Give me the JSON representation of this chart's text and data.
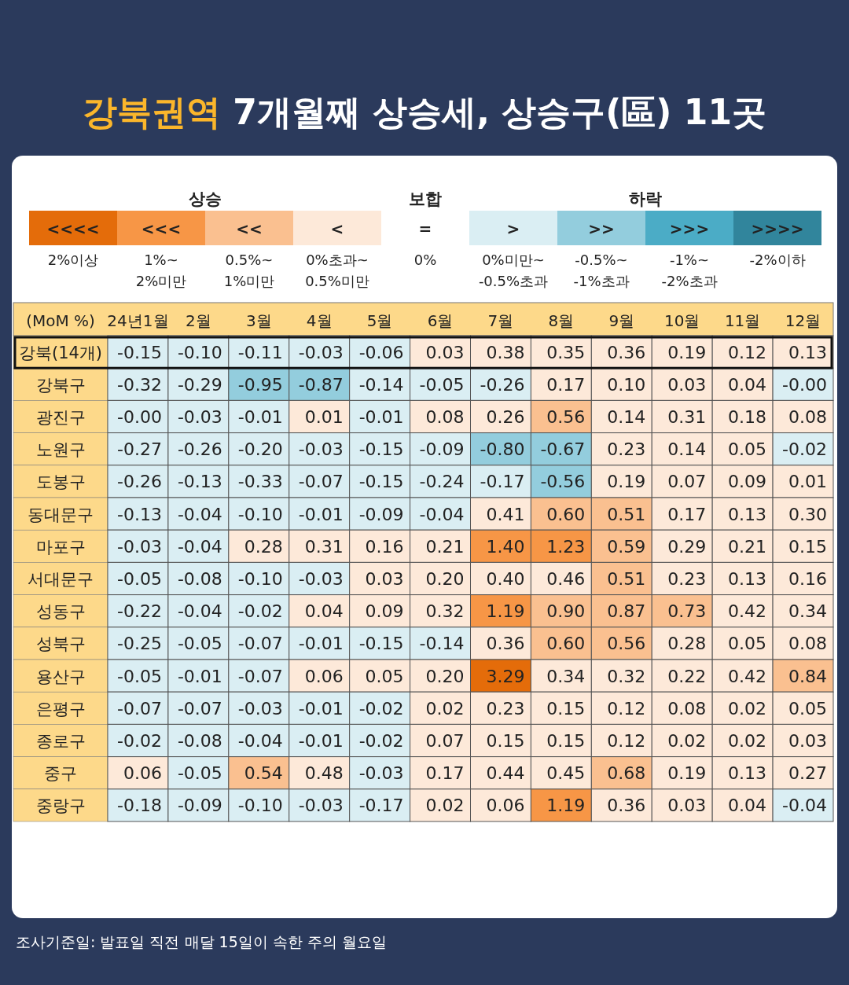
{
  "chart_data": [
    {
      "type": "other",
      "categories": [
        "<<<<",
        "<<<",
        "<<",
        "<",
        "=",
        ">",
        ">>",
        ">>>",
        ">>>>"
      ],
      "colors": [
        "#e46c0a",
        "#f79646",
        "#fac090",
        "#fde9d9",
        "#ffffff",
        "#daeef3",
        "#93cddd",
        "#4bacc6",
        "#31859c"
      ],
      "annotations": [
        "상승",
        "보합",
        "하락",
        "2%이상",
        "1%~ 2%미만",
        "0.5%~ 1%미만",
        "0%초과~ 0.5%미만",
        "0%",
        "0%미만~ -0.5%초과",
        "-0.5%~ -1%초과",
        "-1%~ -2%초과",
        "-2%이하"
      ]
    },
    {
      "type": "heatmap",
      "title": "강북권역 7개월째 상승세, 상승구(區) 11곳",
      "xlabel": "(MoM %)",
      "categories": [
        "24년1월",
        "2월",
        "3월",
        "4월",
        "5월",
        "6월",
        "7월",
        "8월",
        "9월",
        "10월",
        "11월",
        "12월"
      ],
      "y_categories": [
        "강북(14개)",
        "강북구",
        "광진구",
        "노원구",
        "도봉구",
        "동대문구",
        "마포구",
        "서대문구",
        "성동구",
        "성북구",
        "용산구",
        "은평구",
        "종로구",
        "중구",
        "중랑구"
      ],
      "cell_labels": [
        [
          "-0.15",
          "-0.10",
          "-0.11",
          "-0.03",
          "-0.06",
          "0.03",
          "0.38",
          "0.35",
          "0.36",
          "0.19",
          "0.12",
          "0.13"
        ],
        [
          "-0.32",
          "-0.29",
          "-0.95",
          "-0.87",
          "-0.14",
          "-0.05",
          "-0.26",
          "0.17",
          "0.10",
          "0.03",
          "0.04",
          "-0.00"
        ],
        [
          "-0.00",
          "-0.03",
          "-0.01",
          "0.01",
          "-0.01",
          "0.08",
          "0.26",
          "0.56",
          "0.14",
          "0.31",
          "0.18",
          "0.08"
        ],
        [
          "-0.27",
          "-0.26",
          "-0.20",
          "-0.03",
          "-0.15",
          "-0.09",
          "-0.80",
          "-0.67",
          "0.23",
          "0.14",
          "0.05",
          "-0.02"
        ],
        [
          "-0.26",
          "-0.13",
          "-0.33",
          "-0.07",
          "-0.15",
          "-0.24",
          "-0.17",
          "-0.56",
          "0.19",
          "0.07",
          "0.09",
          "0.01"
        ],
        [
          "-0.13",
          "-0.04",
          "-0.10",
          "-0.01",
          "-0.09",
          "-0.04",
          "0.41",
          "0.60",
          "0.51",
          "0.17",
          "0.13",
          "0.30"
        ],
        [
          "-0.03",
          "-0.04",
          "0.28",
          "0.31",
          "0.16",
          "0.21",
          "1.40",
          "1.23",
          "0.59",
          "0.29",
          "0.21",
          "0.15"
        ],
        [
          "-0.05",
          "-0.08",
          "-0.10",
          "-0.03",
          "0.03",
          "0.20",
          "0.40",
          "0.46",
          "0.51",
          "0.23",
          "0.13",
          "0.16"
        ],
        [
          "-0.22",
          "-0.04",
          "-0.02",
          "0.04",
          "0.09",
          "0.32",
          "1.19",
          "0.90",
          "0.87",
          "0.73",
          "0.42",
          "0.34"
        ],
        [
          "-0.25",
          "-0.05",
          "-0.07",
          "-0.01",
          "-0.15",
          "-0.14",
          "0.36",
          "0.60",
          "0.56",
          "0.28",
          "0.05",
          "0.08"
        ],
        [
          "-0.05",
          "-0.01",
          "-0.07",
          "0.06",
          "0.05",
          "0.20",
          "3.29",
          "0.34",
          "0.32",
          "0.22",
          "0.42",
          "0.84"
        ],
        [
          "-0.07",
          "-0.07",
          "-0.03",
          "-0.01",
          "-0.02",
          "0.02",
          "0.23",
          "0.15",
          "0.12",
          "0.08",
          "0.02",
          "0.05"
        ],
        [
          "-0.02",
          "-0.08",
          "-0.04",
          "-0.01",
          "-0.02",
          "0.07",
          "0.15",
          "0.15",
          "0.12",
          "0.02",
          "0.02",
          "0.03"
        ],
        [
          "0.06",
          "-0.05",
          "0.54",
          "0.48",
          "-0.03",
          "0.17",
          "0.44",
          "0.45",
          "0.68",
          "0.19",
          "0.13",
          "0.27"
        ],
        [
          "-0.18",
          "-0.09",
          "-0.10",
          "-0.03",
          "-0.17",
          "0.02",
          "0.06",
          "1.19",
          "0.36",
          "0.03",
          "0.04",
          "-0.04"
        ]
      ],
      "colors": [
        [
          "#daeef3",
          "#daeef3",
          "#daeef3",
          "#daeef3",
          "#daeef3",
          "#fde9d9",
          "#fde9d9",
          "#fde9d9",
          "#fde9d9",
          "#fde9d9",
          "#fde9d9",
          "#fde9d9"
        ],
        [
          "#daeef3",
          "#daeef3",
          "#93cddd",
          "#93cddd",
          "#daeef3",
          "#daeef3",
          "#daeef3",
          "#fde9d9",
          "#fde9d9",
          "#fde9d9",
          "#fde9d9",
          "#daeef3"
        ],
        [
          "#daeef3",
          "#daeef3",
          "#daeef3",
          "#fde9d9",
          "#daeef3",
          "#fde9d9",
          "#fde9d9",
          "#fac090",
          "#fde9d9",
          "#fde9d9",
          "#fde9d9",
          "#fde9d9"
        ],
        [
          "#daeef3",
          "#daeef3",
          "#daeef3",
          "#daeef3",
          "#daeef3",
          "#daeef3",
          "#93cddd",
          "#93cddd",
          "#fde9d9",
          "#fde9d9",
          "#fde9d9",
          "#daeef3"
        ],
        [
          "#daeef3",
          "#daeef3",
          "#daeef3",
          "#daeef3",
          "#daeef3",
          "#daeef3",
          "#daeef3",
          "#93cddd",
          "#fde9d9",
          "#fde9d9",
          "#fde9d9",
          "#fde9d9"
        ],
        [
          "#daeef3",
          "#daeef3",
          "#daeef3",
          "#daeef3",
          "#daeef3",
          "#daeef3",
          "#fde9d9",
          "#fac090",
          "#fac090",
          "#fde9d9",
          "#fde9d9",
          "#fde9d9"
        ],
        [
          "#daeef3",
          "#daeef3",
          "#fde9d9",
          "#fde9d9",
          "#fde9d9",
          "#fde9d9",
          "#f79646",
          "#f79646",
          "#fac090",
          "#fde9d9",
          "#fde9d9",
          "#fde9d9"
        ],
        [
          "#daeef3",
          "#daeef3",
          "#daeef3",
          "#daeef3",
          "#fde9d9",
          "#fde9d9",
          "#fde9d9",
          "#fde9d9",
          "#fac090",
          "#fde9d9",
          "#fde9d9",
          "#fde9d9"
        ],
        [
          "#daeef3",
          "#daeef3",
          "#daeef3",
          "#fde9d9",
          "#fde9d9",
          "#fde9d9",
          "#f79646",
          "#fac090",
          "#fac090",
          "#fac090",
          "#fde9d9",
          "#fde9d9"
        ],
        [
          "#daeef3",
          "#daeef3",
          "#daeef3",
          "#daeef3",
          "#daeef3",
          "#daeef3",
          "#fde9d9",
          "#fac090",
          "#fac090",
          "#fde9d9",
          "#fde9d9",
          "#fde9d9"
        ],
        [
          "#daeef3",
          "#daeef3",
          "#daeef3",
          "#fde9d9",
          "#fde9d9",
          "#fde9d9",
          "#e46c0a",
          "#fde9d9",
          "#fde9d9",
          "#fde9d9",
          "#fde9d9",
          "#fac090"
        ],
        [
          "#daeef3",
          "#daeef3",
          "#daeef3",
          "#daeef3",
          "#daeef3",
          "#fde9d9",
          "#fde9d9",
          "#fde9d9",
          "#fde9d9",
          "#fde9d9",
          "#fde9d9",
          "#fde9d9"
        ],
        [
          "#daeef3",
          "#daeef3",
          "#daeef3",
          "#daeef3",
          "#daeef3",
          "#fde9d9",
          "#fde9d9",
          "#fde9d9",
          "#fde9d9",
          "#fde9d9",
          "#fde9d9",
          "#fde9d9"
        ],
        [
          "#fde9d9",
          "#daeef3",
          "#fac090",
          "#fde9d9",
          "#daeef3",
          "#fde9d9",
          "#fde9d9",
          "#fde9d9",
          "#fac090",
          "#fde9d9",
          "#fde9d9",
          "#fde9d9"
        ],
        [
          "#daeef3",
          "#daeef3",
          "#daeef3",
          "#daeef3",
          "#daeef3",
          "#fde9d9",
          "#fde9d9",
          "#f79646",
          "#fde9d9",
          "#fde9d9",
          "#fde9d9",
          "#daeef3"
        ]
      ],
      "cells": [
        [
          -0.15,
          -0.1,
          -0.11,
          -0.03,
          -0.06,
          0.03,
          0.38,
          0.35,
          0.36,
          0.19,
          0.12,
          0.13
        ],
        [
          -0.32,
          -0.29,
          -0.95,
          -0.87,
          -0.14,
          -0.05,
          -0.26,
          0.17,
          0.1,
          0.03,
          0.04,
          -0.0
        ],
        [
          -0.0,
          -0.03,
          -0.01,
          0.01,
          -0.01,
          0.08,
          0.26,
          0.56,
          0.14,
          0.31,
          0.18,
          0.08
        ],
        [
          -0.27,
          -0.26,
          -0.2,
          -0.03,
          -0.15,
          -0.09,
          -0.8,
          -0.67,
          0.23,
          0.14,
          0.05,
          -0.02
        ],
        [
          -0.26,
          -0.13,
          -0.33,
          -0.07,
          -0.15,
          -0.24,
          -0.17,
          -0.56,
          0.19,
          0.07,
          0.09,
          0.01
        ],
        [
          -0.13,
          -0.04,
          -0.1,
          -0.01,
          -0.09,
          -0.04,
          0.41,
          0.6,
          0.51,
          0.17,
          0.13,
          0.3
        ],
        [
          -0.03,
          -0.04,
          0.28,
          0.31,
          0.16,
          0.21,
          1.4,
          1.23,
          0.59,
          0.29,
          0.21,
          0.15
        ],
        [
          -0.05,
          -0.08,
          -0.1,
          -0.03,
          0.03,
          0.2,
          0.4,
          0.46,
          0.51,
          0.23,
          0.13,
          0.16
        ],
        [
          -0.22,
          -0.04,
          -0.02,
          0.04,
          0.09,
          0.32,
          1.19,
          0.9,
          0.87,
          0.73,
          0.42,
          0.34
        ],
        [
          -0.25,
          -0.05,
          -0.07,
          -0.01,
          -0.15,
          -0.14,
          0.36,
          0.6,
          0.56,
          0.28,
          0.05,
          0.08
        ],
        [
          -0.05,
          -0.01,
          -0.07,
          0.06,
          0.05,
          0.2,
          3.29,
          0.34,
          0.32,
          0.22,
          0.42,
          0.84
        ],
        [
          -0.07,
          -0.07,
          -0.03,
          -0.01,
          -0.02,
          0.02,
          0.23,
          0.15,
          0.12,
          0.08,
          0.02,
          0.05
        ],
        [
          -0.02,
          -0.08,
          -0.04,
          -0.01,
          -0.02,
          0.07,
          0.15,
          0.15,
          0.12,
          0.02,
          0.02,
          0.03
        ],
        [
          0.06,
          -0.05,
          0.54,
          0.48,
          -0.03,
          0.17,
          0.44,
          0.45,
          0.68,
          0.19,
          0.13,
          0.27
        ],
        [
          -0.18,
          -0.09,
          -0.1,
          -0.03,
          -0.17,
          0.02,
          0.06,
          1.19,
          0.36,
          0.03,
          0.04,
          -0.04
        ]
      ],
      "annotations": [
        "조사기준일: 발표일 직전 매달 15일이 속한 주의 월요일"
      ]
    }
  ]
}
